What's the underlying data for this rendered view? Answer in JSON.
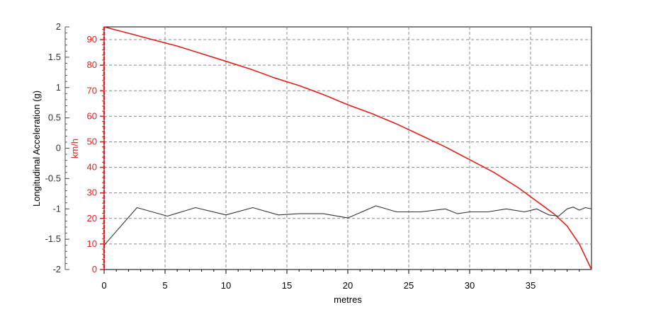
{
  "chart_data": {
    "type": "line",
    "xlabel": "metres",
    "x_ticks": [
      "0",
      "5",
      "10",
      "15",
      "20",
      "25",
      "30",
      "35"
    ],
    "xlim": [
      0,
      40
    ],
    "left_axis": {
      "label": "Longitudinal Acceleration (g)",
      "ylim": [
        -2,
        2
      ],
      "ticks": [
        "2",
        "1.5",
        "1",
        "0.5",
        "0",
        "-0.5",
        "-1",
        "-1.5",
        "-2"
      ]
    },
    "right_axis": {
      "label": "km/h",
      "ylim": [
        0,
        95
      ],
      "ticks": [
        "90",
        "80",
        "70",
        "60",
        "50",
        "40",
        "30",
        "20",
        "10",
        "0"
      ]
    },
    "grid": true,
    "series": [
      {
        "axis": "km/h",
        "color": "#e0201c",
        "x": [
          0,
          2,
          4,
          6,
          8,
          10,
          12,
          14,
          16,
          18,
          20,
          22,
          24,
          26,
          28,
          30,
          32,
          34,
          36,
          37,
          38,
          39,
          39.5,
          40
        ],
        "y": [
          95,
          92.5,
          90,
          87.5,
          84.5,
          81.5,
          78.5,
          75,
          72,
          68.5,
          64.5,
          61,
          57,
          52.5,
          48,
          43,
          38,
          32,
          25,
          21.5,
          17,
          10,
          5,
          0
        ]
      },
      {
        "axis": "Longitudinal Acceleration (g)",
        "color": "#333333",
        "x": [
          0,
          2.7,
          5.2,
          7.5,
          10,
          12.2,
          14.3,
          16,
          18,
          20,
          22.3,
          24,
          26,
          28,
          29,
          30,
          31.5,
          33,
          34.5,
          35.5,
          36.5,
          37.3,
          38,
          38.5,
          39,
          39.5,
          40
        ],
        "y": [
          -1.6,
          -0.98,
          -1.12,
          -0.98,
          -1.1,
          -0.98,
          -1.1,
          -1.08,
          -1.08,
          -1.15,
          -0.95,
          -1.05,
          -1.05,
          -1.0,
          -1.08,
          -1.05,
          -1.05,
          -1.0,
          -1.05,
          -1.0,
          -1.1,
          -1.12,
          -1.0,
          -0.97,
          -1.02,
          -0.98,
          -1.0
        ]
      }
    ]
  }
}
